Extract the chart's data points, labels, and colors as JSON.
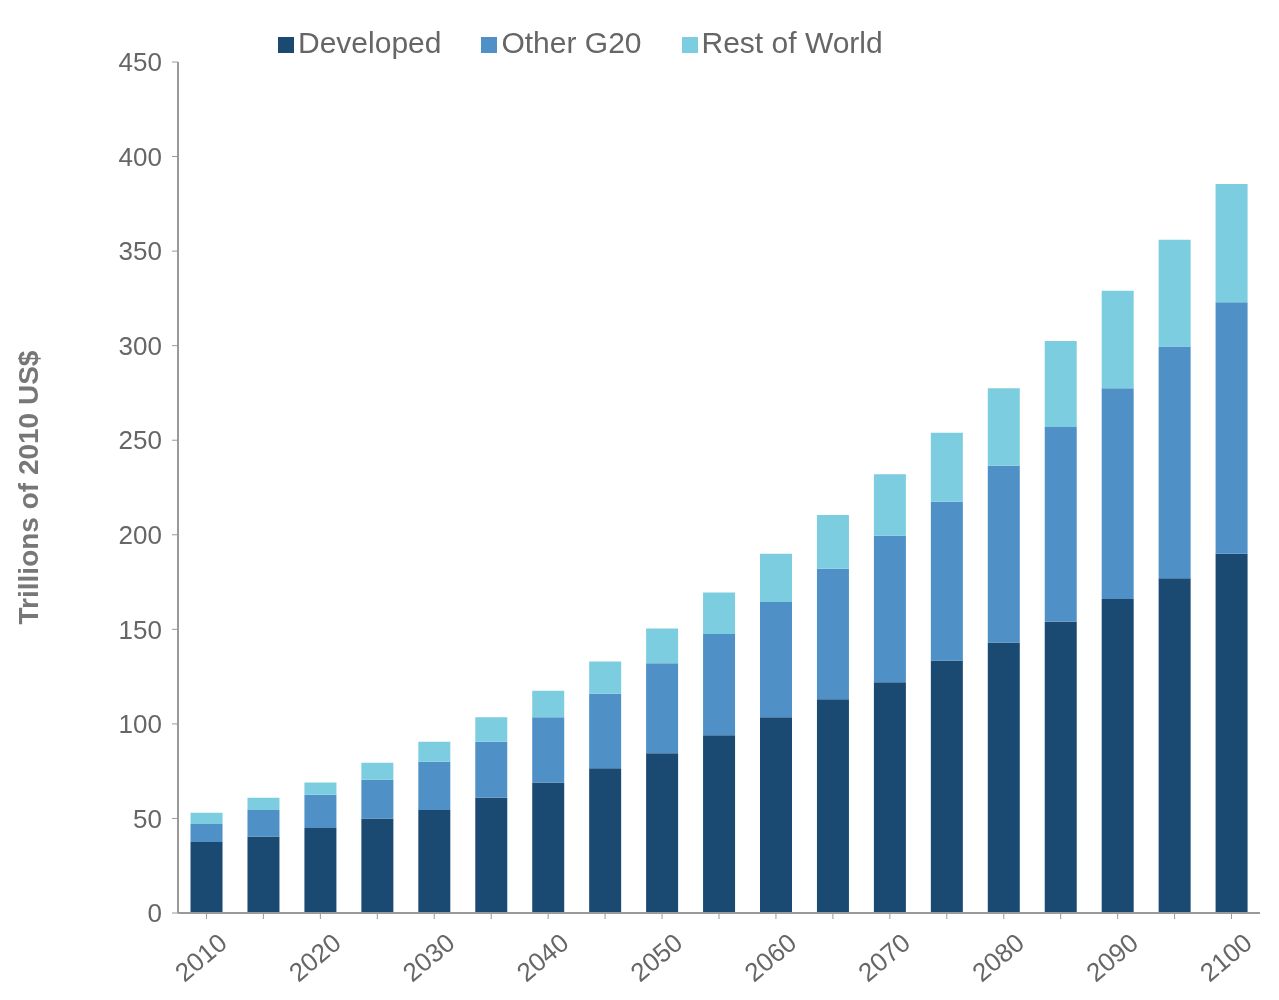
{
  "chart_data": {
    "type": "bar",
    "stacked": true,
    "ylabel": "Trillions of 2010 US$",
    "categories": [
      "2010",
      null,
      "2020",
      null,
      "2030",
      null,
      "2040",
      null,
      "2050",
      null,
      "2060",
      null,
      "2070",
      null,
      "2080",
      null,
      "2090",
      null,
      "2100"
    ],
    "series": [
      {
        "name": "Developed",
        "color": "#1a4a72",
        "values": [
          37.5,
          40.5,
          45,
          50,
          54.5,
          61,
          69,
          76.5,
          84.5,
          94,
          103.5,
          113,
          122,
          133.5,
          143,
          154,
          166,
          177,
          190
        ]
      },
      {
        "name": "Other G20",
        "color": "#4f91c6",
        "values": [
          9.5,
          14,
          17.5,
          20.5,
          25.5,
          29.5,
          34.5,
          39.5,
          47.5,
          53.5,
          61,
          69,
          77.5,
          84,
          93.5,
          103,
          111.5,
          122.5,
          133
        ]
      },
      {
        "name": "Rest of World",
        "color": "#7ccde0",
        "values": [
          6,
          6.5,
          6.5,
          9,
          10.5,
          13,
          14,
          17,
          18.5,
          22,
          25.5,
          28.5,
          32.5,
          36.5,
          41,
          45.5,
          51.5,
          56.5,
          62.5
        ]
      }
    ],
    "ylim": [
      0,
      450
    ],
    "yticks": [
      0,
      50,
      100,
      150,
      200,
      250,
      300,
      350,
      400,
      450
    ],
    "grid": false,
    "legend": "top"
  }
}
